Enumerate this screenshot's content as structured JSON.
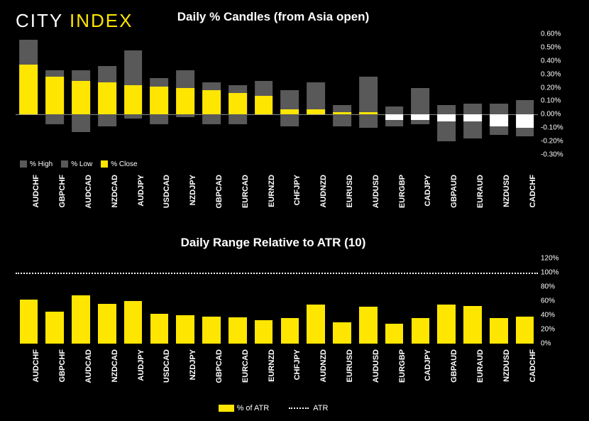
{
  "brand": {
    "word1": "CITY",
    "word2": "INDEX",
    "color1": "#ffffff",
    "color2": "#ffe600"
  },
  "chart1": {
    "type": "bar-candle",
    "title": "Daily % Candles (from Asia open)",
    "title_fontsize": 17,
    "background_color": "#000000",
    "range_color": "#595959",
    "close_pos_color": "#ffe600",
    "close_neg_color": "#ffffff",
    "baseline_color": "#888888",
    "label_fontsize": 11,
    "ytick_fontsize": 10,
    "ylim": [
      -0.3,
      0.6
    ],
    "yticks": [
      -0.3,
      -0.2,
      -0.1,
      0.0,
      0.1,
      0.2,
      0.3,
      0.4,
      0.5,
      0.6
    ],
    "ytick_labels": [
      "-0.30%",
      "-0.20%",
      "-0.10%",
      "0.00%",
      "0.10%",
      "0.20%",
      "0.30%",
      "0.40%",
      "0.50%",
      "0.60%"
    ],
    "bar_width_ratio": 0.7,
    "legend": {
      "high": "% High",
      "low": "% Low",
      "close": "% Close"
    },
    "categories": [
      "AUDCHF",
      "GBPCHF",
      "AUDCAD",
      "NZDCAD",
      "AUDJPY",
      "USDCAD",
      "NZDJPY",
      "GBPCAD",
      "EURCAD",
      "EURNZD",
      "CHFJPY",
      "AUDNZD",
      "EURUSD",
      "AUDUSD",
      "EURGBP",
      "CADJPY",
      "GBPAUD",
      "EURAUD",
      "NZDUSD",
      "CADCHF"
    ],
    "high": [
      0.56,
      0.33,
      0.33,
      0.36,
      0.48,
      0.27,
      0.33,
      0.24,
      0.22,
      0.25,
      0.18,
      0.24,
      0.07,
      0.28,
      0.06,
      0.2,
      0.07,
      0.08,
      0.08,
      0.11
    ],
    "low": [
      0.0,
      -0.07,
      -0.13,
      -0.09,
      -0.03,
      -0.07,
      -0.02,
      -0.07,
      -0.07,
      0.0,
      -0.09,
      0.0,
      -0.09,
      -0.1,
      -0.09,
      -0.07,
      -0.2,
      -0.18,
      -0.15,
      -0.16
    ],
    "close": [
      0.37,
      0.28,
      0.25,
      0.24,
      0.22,
      0.21,
      0.2,
      0.18,
      0.16,
      0.14,
      0.04,
      0.04,
      0.02,
      0.02,
      -0.04,
      -0.04,
      -0.05,
      -0.05,
      -0.09,
      -0.1
    ]
  },
  "chart2": {
    "type": "bar",
    "title": "Daily Range Relative to ATR (10)",
    "title_fontsize": 17,
    "background_color": "#000000",
    "bar_color": "#ffe600",
    "atr_line_color": "#ffffff",
    "label_fontsize": 11,
    "ytick_fontsize": 10,
    "ylim": [
      0,
      120
    ],
    "yticks": [
      0,
      20,
      40,
      60,
      80,
      100,
      120
    ],
    "ytick_labels": [
      "0%",
      "20%",
      "40%",
      "60%",
      "80%",
      "100%",
      "120%"
    ],
    "atr_value": 100,
    "bar_width_ratio": 0.7,
    "legend": {
      "bar": "% of ATR",
      "line": "ATR"
    },
    "categories": [
      "AUDCHF",
      "GBPCHF",
      "AUDCAD",
      "NZDCAD",
      "AUDJPY",
      "USDCAD",
      "NZDJPY",
      "GBPCAD",
      "EURCAD",
      "EURNZD",
      "CHFJPY",
      "AUDNZD",
      "EURUSD",
      "AUDUSD",
      "EURGBP",
      "CADJPY",
      "GBPAUD",
      "EURAUD",
      "NZDUSD",
      "CADCHF"
    ],
    "values": [
      62,
      45,
      68,
      56,
      60,
      42,
      40,
      38,
      37,
      33,
      36,
      55,
      30,
      52,
      28,
      36,
      55,
      53,
      36,
      38
    ]
  }
}
